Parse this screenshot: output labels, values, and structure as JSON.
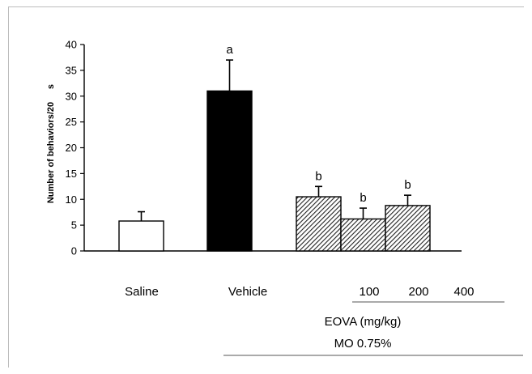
{
  "chart_data": {
    "type": "bar",
    "ylabel": "Number of behaviors/20",
    "ylabel_suffix": "s",
    "ylim": [
      0,
      40
    ],
    "yticks": [
      0,
      5,
      10,
      15,
      20,
      25,
      30,
      35,
      40
    ],
    "grid": false,
    "bars": [
      {
        "category": "Saline",
        "value": 5.8,
        "error": 1.8,
        "annotation": "",
        "fill": "white"
      },
      {
        "category": "Vehicle",
        "value": 31.0,
        "error": 6.0,
        "annotation": "a",
        "fill": "black"
      },
      {
        "category": "100",
        "value": 10.5,
        "error": 2.0,
        "annotation": "b",
        "fill": "hatched"
      },
      {
        "category": "200",
        "value": 6.2,
        "error": 2.1,
        "annotation": "b",
        "fill": "hatched"
      },
      {
        "category": "400",
        "value": 8.8,
        "error": 2.0,
        "annotation": "b",
        "fill": "hatched"
      }
    ],
    "group_label": "EOVA (mg/kg)",
    "condition_label": "MO 0.75%"
  }
}
